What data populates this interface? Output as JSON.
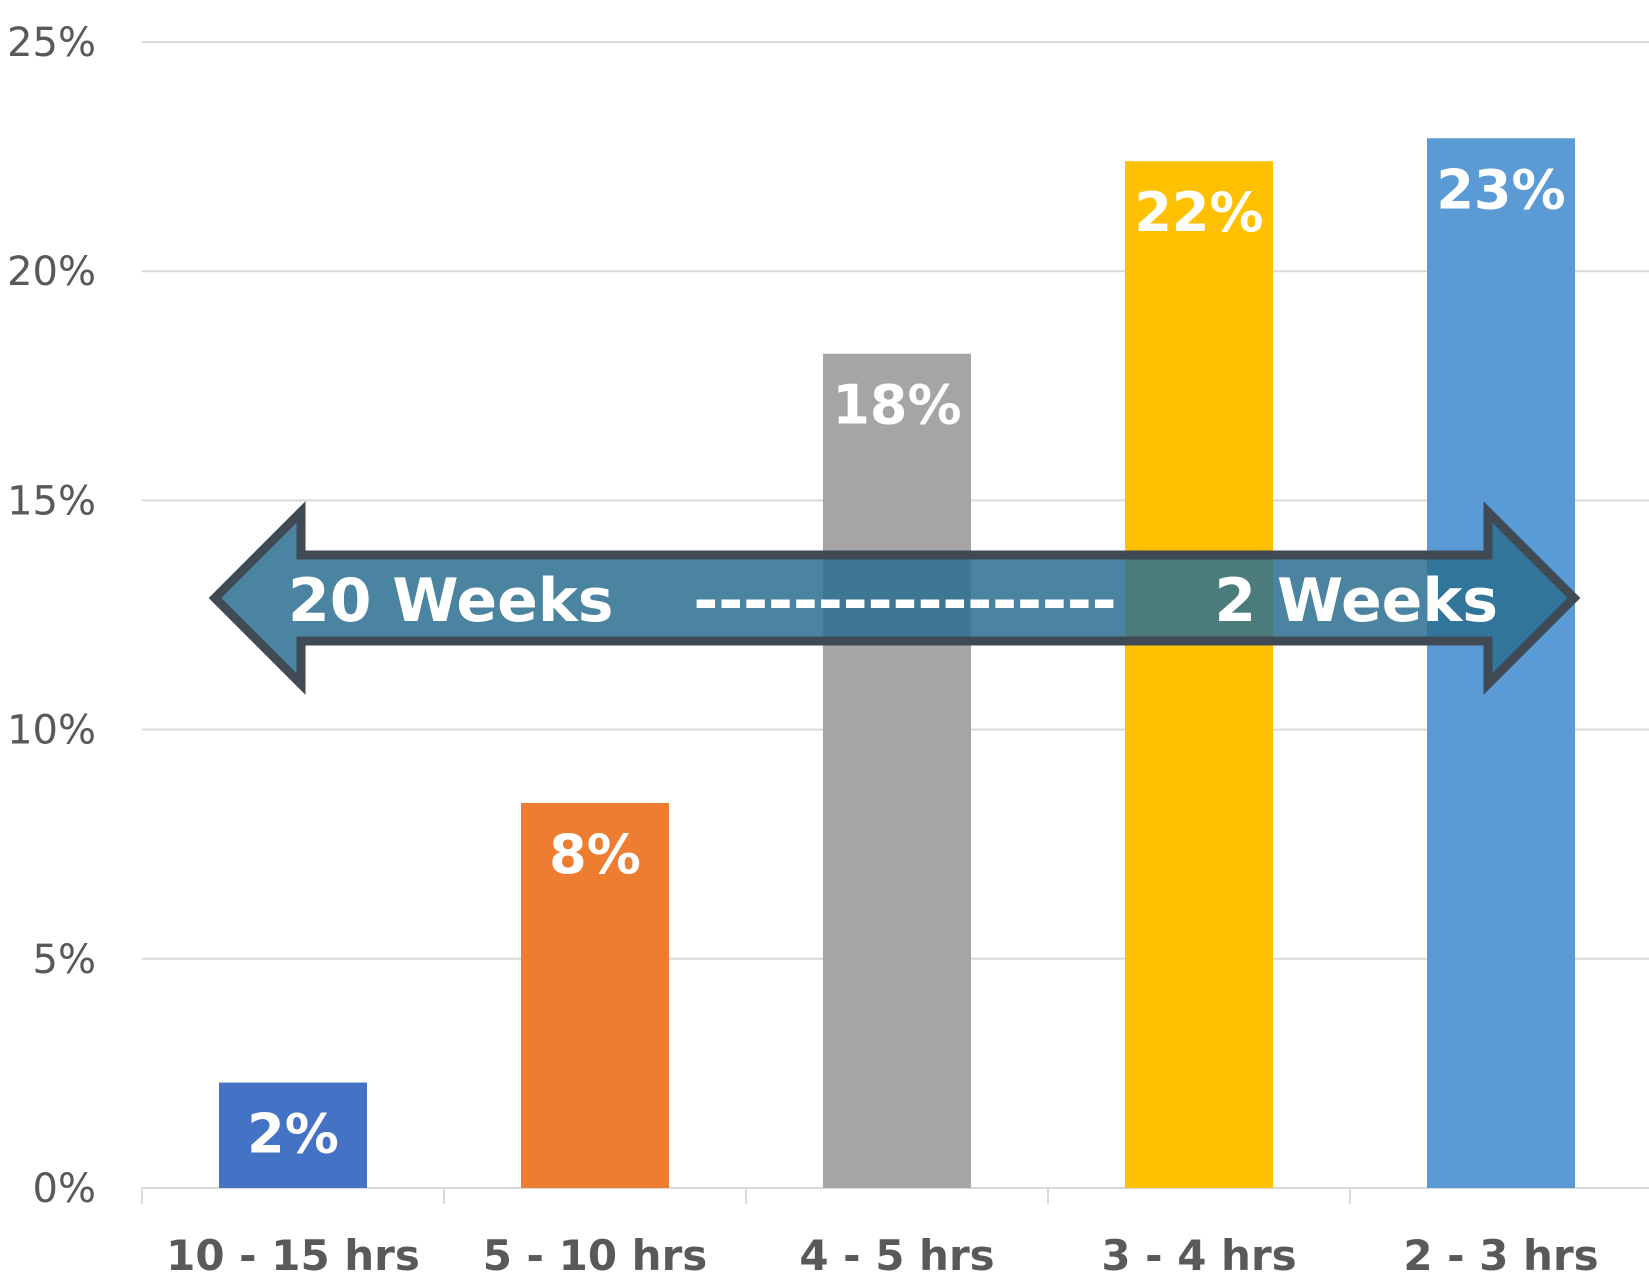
{
  "chart_data": {
    "type": "bar",
    "categories": [
      "10 - 15 hrs",
      "5 - 10 hrs",
      "4 - 5 hrs",
      "3 - 4 hrs",
      "2 - 3 hrs"
    ],
    "values": [
      2.3,
      8.4,
      18.2,
      22.4,
      22.9
    ],
    "data_labels": [
      "2%",
      "8%",
      "18%",
      "22%",
      "23%"
    ],
    "colors": [
      "#4472C4",
      "#ED7D31",
      "#A5A5A5",
      "#FFC000",
      "#5B9BD5"
    ],
    "ylim": [
      0,
      25
    ],
    "yticks": [
      0,
      5,
      10,
      15,
      20,
      25
    ],
    "ytick_labels": [
      "0%",
      "5%",
      "10%",
      "15%",
      "20%",
      "25%"
    ],
    "grid": true,
    "title": "",
    "xlabel": "",
    "ylabel": ""
  },
  "annotation": {
    "left_text": "20 Weeks",
    "dashes": "-----------------",
    "right_text": "2 Weeks",
    "fill_color": "#2C6E8F",
    "stroke_color": "#3F4A55"
  }
}
